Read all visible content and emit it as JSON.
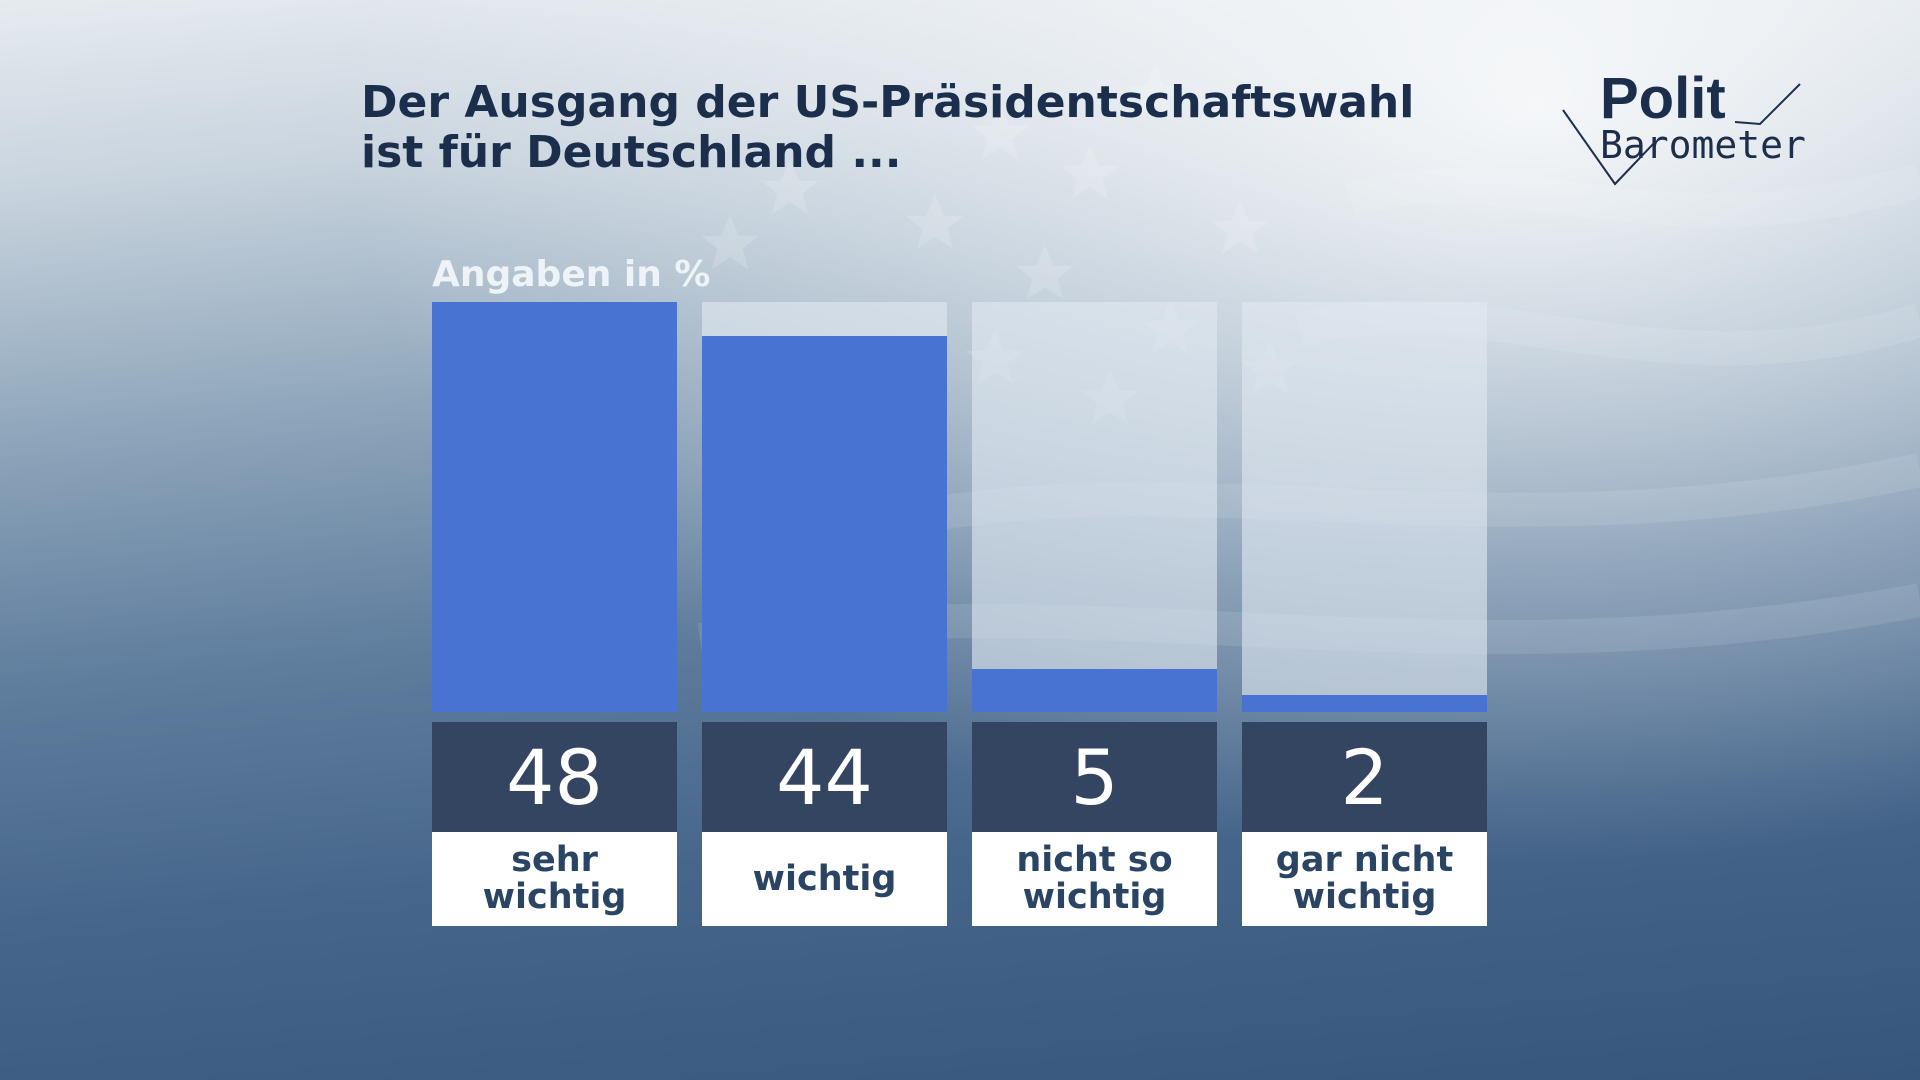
{
  "title_lines": [
    "Der Ausgang der US-Präsidentschaftswahl",
    "ist für Deutschland ..."
  ],
  "logo": {
    "text_top": "Polit",
    "text_bottom": "Barometer"
  },
  "chart_data": {
    "type": "bar",
    "title": "Der Ausgang der US-Präsidentschaftswahl ist für Deutschland ...",
    "unit_label": "Angaben in %",
    "categories": [
      "sehr wichtig",
      "wichtig",
      "nicht so wichtig",
      "gar nicht wichtig"
    ],
    "values": [
      48,
      44,
      5,
      2
    ],
    "ylim": [
      0,
      48
    ],
    "grid": false,
    "legend": "none",
    "colors": {
      "bar": "#4873d3",
      "value_box": "#334560",
      "title": "#1b2f4d",
      "label_text": "#2a4463"
    }
  }
}
